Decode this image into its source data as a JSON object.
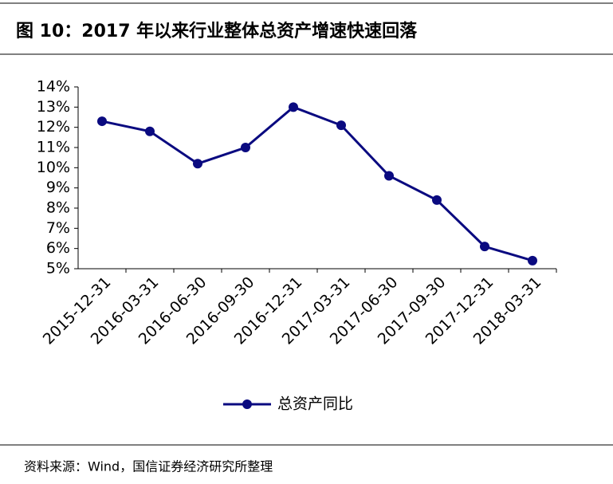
{
  "chart_data": {
    "type": "line",
    "title": "图 10：2017 年以来行业整体总资产增速快速回落",
    "source": "资料来源：Wind，国信证券经济研究所整理",
    "categories": [
      "2015-12-31",
      "2016-03-31",
      "2016-06-30",
      "2016-09-30",
      "2016-12-31",
      "2017-03-31",
      "2017-06-30",
      "2017-09-30",
      "2017-12-31",
      "2018-03-31"
    ],
    "series": [
      {
        "name": "总资产同比",
        "color": "#0a0a80",
        "values": [
          12.3,
          11.8,
          10.2,
          11.0,
          13.0,
          12.1,
          9.6,
          8.4,
          6.1,
          5.4
        ]
      }
    ],
    "ylim": [
      5,
      14
    ],
    "yticks": [
      {
        "value": 5,
        "label": "5%"
      },
      {
        "value": 6,
        "label": "6%"
      },
      {
        "value": 7,
        "label": "7%"
      },
      {
        "value": 8,
        "label": "8%"
      },
      {
        "value": 9,
        "label": "9%"
      },
      {
        "value": 10,
        "label": "10%"
      },
      {
        "value": 11,
        "label": "11%"
      },
      {
        "value": 12,
        "label": "12%"
      },
      {
        "value": 13,
        "label": "13%"
      },
      {
        "value": 14,
        "label": "14%"
      }
    ],
    "legend": "bottom"
  }
}
